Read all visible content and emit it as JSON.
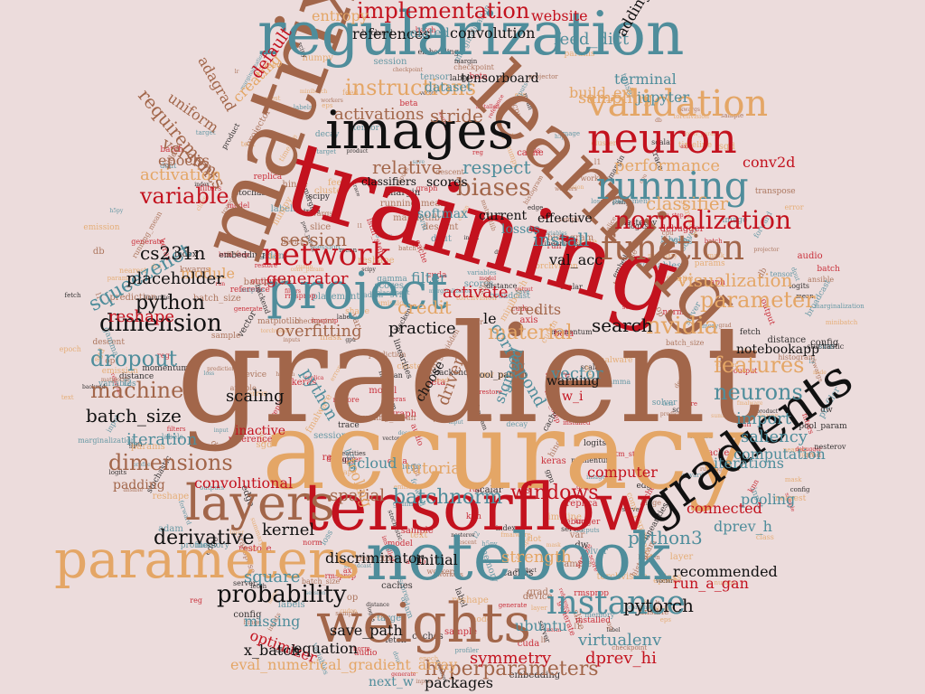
{
  "palette": {
    "brown": "#a2664a",
    "teal": "#4f8d9b",
    "red": "#c3121e",
    "gold": "#e4a666",
    "black": "#111111",
    "background": "#ecdcdc"
  },
  "words": [
    {
      "text": "gradient",
      "color": "brown"
    },
    {
      "text": "accuracy",
      "color": "gold"
    },
    {
      "text": "training",
      "color": "red"
    },
    {
      "text": "matrix",
      "color": "brown"
    },
    {
      "text": "learning",
      "color": "brown"
    },
    {
      "text": "tensorflow",
      "color": "red"
    },
    {
      "text": "notebook",
      "color": "teal"
    },
    {
      "text": "regularization",
      "color": "teal"
    },
    {
      "text": "images",
      "color": "black"
    },
    {
      "text": "parameters",
      "color": "gold"
    },
    {
      "text": "gradients",
      "color": "black"
    },
    {
      "text": "weights",
      "color": "brown"
    },
    {
      "text": "layers",
      "color": "brown"
    },
    {
      "text": "project",
      "color": "teal"
    },
    {
      "text": "neuron",
      "color": "red"
    },
    {
      "text": "validation",
      "color": "gold"
    },
    {
      "text": "running",
      "color": "teal"
    },
    {
      "text": "function",
      "color": "brown"
    },
    {
      "text": "instance",
      "color": "teal"
    },
    {
      "text": "network",
      "color": "red"
    },
    {
      "text": "normalization",
      "color": "red"
    },
    {
      "text": "implementation",
      "color": "red"
    },
    {
      "text": "instructions",
      "color": "gold"
    },
    {
      "text": "probability",
      "color": "black"
    },
    {
      "text": "dimension",
      "color": "black"
    },
    {
      "text": "machine",
      "color": "brown"
    },
    {
      "text": "dropout",
      "color": "teal"
    },
    {
      "text": "nvidia",
      "color": "gold"
    },
    {
      "text": "features",
      "color": "gold"
    },
    {
      "text": "neurons",
      "color": "teal"
    },
    {
      "text": "windows",
      "color": "red"
    },
    {
      "text": "parameter",
      "color": "gold"
    },
    {
      "text": "visualization",
      "color": "gold"
    },
    {
      "text": "biases",
      "color": "brown"
    },
    {
      "text": "variable",
      "color": "red"
    },
    {
      "text": "dimensions",
      "color": "brown"
    },
    {
      "text": "hyperparameters",
      "color": "brown"
    },
    {
      "text": "squeezenet",
      "color": "teal"
    },
    {
      "text": "requirements",
      "color": "brown"
    },
    {
      "text": "material",
      "color": "gold"
    },
    {
      "text": "derivative",
      "color": "black"
    },
    {
      "text": "batch_size",
      "color": "black"
    },
    {
      "text": "batchnorm",
      "color": "teal"
    },
    {
      "text": "session",
      "color": "brown"
    },
    {
      "text": "credit",
      "color": "gold"
    },
    {
      "text": "relative",
      "color": "brown"
    },
    {
      "text": "respect",
      "color": "teal"
    },
    {
      "text": "stride",
      "color": "brown"
    },
    {
      "text": "activations",
      "color": "brown"
    },
    {
      "text": "classifier",
      "color": "gold"
    },
    {
      "text": "install",
      "color": "teal"
    },
    {
      "text": "import",
      "color": "teal"
    },
    {
      "text": "saliency",
      "color": "teal"
    },
    {
      "text": "python",
      "color": "black"
    },
    {
      "text": "python3",
      "color": "teal"
    },
    {
      "text": "pytorch",
      "color": "black"
    },
    {
      "text": "search",
      "color": "black"
    },
    {
      "text": "scaling",
      "color": "black"
    },
    {
      "text": "practice",
      "color": "black"
    },
    {
      "text": "iteration",
      "color": "teal"
    },
    {
      "text": "activation",
      "color": "gold"
    },
    {
      "text": "generator",
      "color": "red"
    },
    {
      "text": "activate",
      "color": "red"
    },
    {
      "text": "spatial",
      "color": "brown"
    },
    {
      "text": "kernel",
      "color": "black"
    },
    {
      "text": "strength",
      "color": "gold"
    },
    {
      "text": "symmetry",
      "color": "red"
    },
    {
      "text": "ubuntu",
      "color": "teal"
    },
    {
      "text": "virtualenv",
      "color": "teal"
    },
    {
      "text": "dprev_hi",
      "color": "red"
    },
    {
      "text": "cs231n",
      "color": "black"
    },
    {
      "text": "overfitting",
      "color": "brown"
    },
    {
      "text": "reshape",
      "color": "red"
    },
    {
      "text": "conv2d",
      "color": "red"
    },
    {
      "text": "performance",
      "color": "gold"
    },
    {
      "text": "computation",
      "color": "teal"
    },
    {
      "text": "iterations",
      "color": "teal"
    },
    {
      "text": "convolutional",
      "color": "red"
    },
    {
      "text": "pooling",
      "color": "teal"
    },
    {
      "text": "notebookapp",
      "color": "black"
    },
    {
      "text": "vector",
      "color": "teal"
    },
    {
      "text": "sigmoid",
      "color": "teal"
    },
    {
      "text": "driver",
      "color": "brown"
    },
    {
      "text": "terminal",
      "color": "teal"
    },
    {
      "text": "tensorboard",
      "color": "black"
    },
    {
      "text": "convolution",
      "color": "black"
    },
    {
      "text": "website",
      "color": "red"
    },
    {
      "text": "references",
      "color": "black"
    },
    {
      "text": "entropy",
      "color": "gold"
    },
    {
      "text": "related",
      "color": "teal"
    },
    {
      "text": "sampling",
      "color": "gold"
    },
    {
      "text": "jupyter",
      "color": "teal"
    },
    {
      "text": "feed_dict",
      "color": "teal"
    },
    {
      "text": "adding",
      "color": "black"
    },
    {
      "text": "epochs",
      "color": "brown"
    },
    {
      "text": "uniform",
      "color": "brown"
    },
    {
      "text": "version",
      "color": "brown"
    },
    {
      "text": "creating",
      "color": "gold"
    },
    {
      "text": "default",
      "color": "red"
    },
    {
      "text": "adagrad",
      "color": "brown"
    },
    {
      "text": "dataset",
      "color": "teal"
    },
    {
      "text": "build_ext",
      "color": "gold"
    },
    {
      "text": "softmax",
      "color": "teal"
    },
    {
      "text": "scores",
      "color": "black"
    },
    {
      "text": "classifiers",
      "color": "black"
    },
    {
      "text": "current",
      "color": "black"
    },
    {
      "text": "effective",
      "color": "black"
    },
    {
      "text": "losses",
      "color": "teal"
    },
    {
      "text": "val_acc",
      "color": "black"
    },
    {
      "text": "filter",
      "color": "teal"
    },
    {
      "text": "module",
      "color": "gold"
    },
    {
      "text": "placeholder",
      "color": "black"
    },
    {
      "text": "credits",
      "color": "brown"
    },
    {
      "text": "le",
      "color": "black"
    },
    {
      "text": "warning",
      "color": "black"
    },
    {
      "text": "w_i",
      "color": "red"
    },
    {
      "text": "inactive",
      "color": "red"
    },
    {
      "text": "padding",
      "color": "brown"
    },
    {
      "text": "gcloud",
      "color": "teal"
    },
    {
      "text": "tutorial",
      "color": "gold"
    },
    {
      "text": "computer",
      "color": "red"
    },
    {
      "text": "connected",
      "color": "red"
    },
    {
      "text": "dprev_h",
      "color": "teal"
    },
    {
      "text": "discriminator",
      "color": "black"
    },
    {
      "text": "initial",
      "color": "black"
    },
    {
      "text": "recommended",
      "color": "black"
    },
    {
      "text": "run_a_gan",
      "color": "red"
    },
    {
      "text": "square",
      "color": "teal"
    },
    {
      "text": "missing",
      "color": "teal"
    },
    {
      "text": "optimizer",
      "color": "red"
    },
    {
      "text": "save_path",
      "color": "black"
    },
    {
      "text": "equation",
      "color": "black"
    },
    {
      "text": "x_batch",
      "color": "black"
    },
    {
      "text": "eval_numerical_gradient_array",
      "color": "gold"
    },
    {
      "text": "next_w",
      "color": "teal"
    },
    {
      "text": "packages",
      "color": "black"
    },
    {
      "text": "python",
      "color": "teal"
    },
    {
      "text": "correspond",
      "color": "teal"
    },
    {
      "text": "choose",
      "color": "black"
    },
    {
      "text": "tooling",
      "color": "gold"
    }
  ],
  "fillers": [
    "kwargs",
    "marginalization",
    "installed",
    "fmalware",
    "linearities",
    "batch_size",
    "forward",
    "lstm_step",
    "emission",
    "logits",
    "sample",
    "variables",
    "reference",
    "torchvision",
    "backend",
    "workers",
    "labels",
    "generate",
    "epoch",
    "caches",
    "inputs",
    "outputs",
    "sample",
    "layer",
    "vector",
    "ansible",
    "scores",
    "filters",
    "conv_param",
    "dw",
    "db",
    "dout",
    "cache",
    "shape",
    "pool_param",
    "grad",
    "loss",
    "reg",
    "mask",
    "mean",
    "var",
    "gamma",
    "beta",
    "eps",
    "momentum",
    "running_mean",
    "solver",
    "model",
    "params",
    "config",
    "lr",
    "decay",
    "keras",
    "numpy",
    "scipy",
    "matplotlib",
    "h5py",
    "cuda",
    "cudnn",
    "gpu",
    "cpu",
    "memory",
    "batch",
    "minibatch",
    "stochastic",
    "descent",
    "adam",
    "rmsprop",
    "sgd",
    "nesterov",
    "hidden",
    "input",
    "output",
    "class",
    "label",
    "prediction",
    "target",
    "score",
    "error",
    "margin",
    "hinge",
    "svm",
    "knn",
    "nearest",
    "distance",
    "l1",
    "l2",
    "norm",
    "dot",
    "product",
    "transpose",
    "broadcast",
    "axis",
    "reshape",
    "index",
    "slice",
    "tensor",
    "graph",
    "node",
    "edge",
    "op",
    "session",
    "run",
    "feed",
    "fetch",
    "checkpoint",
    "save",
    "restore",
    "summary",
    "scalar",
    "histogram",
    "image",
    "audio",
    "text",
    "embedding",
    "projector",
    "profiler",
    "debugger",
    "timeline",
    "trace",
    "device",
    "placement",
    "replica",
    "cluster",
    "server"
  ]
}
